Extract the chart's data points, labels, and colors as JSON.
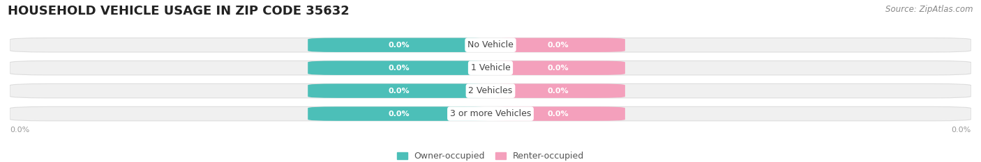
{
  "title": "HOUSEHOLD VEHICLE USAGE IN ZIP CODE 35632",
  "source": "Source: ZipAtlas.com",
  "categories": [
    "No Vehicle",
    "1 Vehicle",
    "2 Vehicles",
    "3 or more Vehicles"
  ],
  "owner_values": [
    0.0,
    0.0,
    0.0,
    0.0
  ],
  "renter_values": [
    0.0,
    0.0,
    0.0,
    0.0
  ],
  "owner_color": "#4CBFB8",
  "renter_color": "#F4A0BC",
  "bar_bg_color": "#F0F0F0",
  "bar_bg_edge_color": "#DDDDDD",
  "title_fontsize": 13,
  "source_fontsize": 8.5,
  "value_label_fontsize": 8,
  "cat_label_fontsize": 9,
  "legend_fontsize": 9,
  "bar_height": 0.62,
  "xlim_left": -1.0,
  "xlim_right": 1.0,
  "owner_bar_width": 0.38,
  "renter_bar_width": 0.28,
  "background_color": "#FFFFFF",
  "axis_tick_color": "#999999",
  "cat_label_color": "#444444",
  "value_label_color": "#FFFFFF"
}
